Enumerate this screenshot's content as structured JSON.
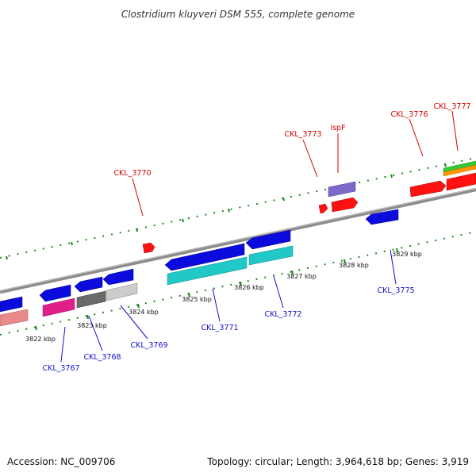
{
  "title": "Clostridium kluyveri DSM 555, complete genome",
  "footer": {
    "accession": "Accession: NC_009706",
    "summary": "Topology: circular; Length: 3,964,618 bp; Genes: 3,919"
  },
  "colors": {
    "backbone": "#8c8c8c",
    "ticks": "#1a8a1a",
    "forward_label": "#d40000",
    "reverse_label": "#1010cc"
  },
  "kbp_ticks": [
    "3822 kbp",
    "3823 kbp",
    "3824 kbp",
    "3825 kbp",
    "3826 kbp",
    "3827 kbp",
    "3828 kbp",
    "3829 kbp"
  ],
  "gene_labels": {
    "forward": [
      "CKL_3770",
      "CKL_3773",
      "ispF",
      "CKL_3776",
      "CKL_3777"
    ],
    "reverse": [
      "CKL_3767",
      "CKL_3768",
      "CKL_3769",
      "CKL_3771",
      "CKL_3772",
      "CKL_3775"
    ]
  }
}
